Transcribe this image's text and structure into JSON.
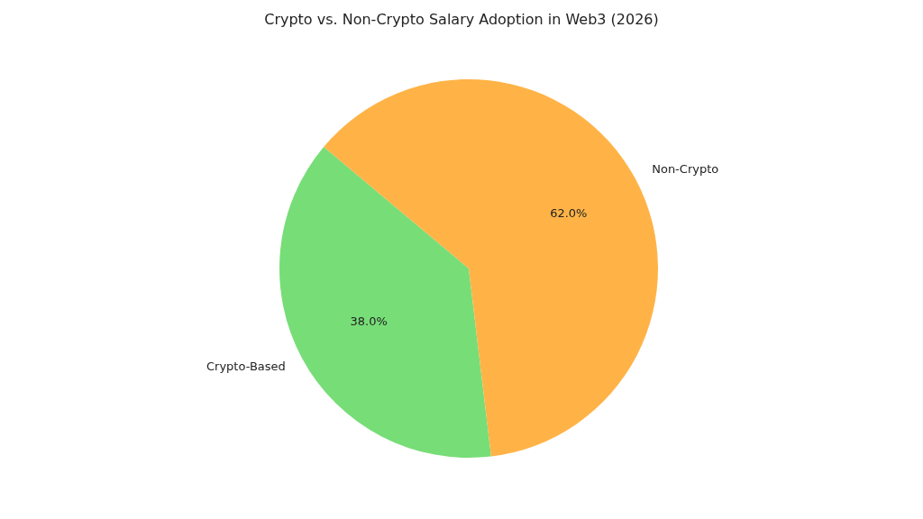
{
  "chart_data": {
    "type": "pie",
    "title": "Crypto vs. Non-Crypto Salary Adoption in Web3 (2026)",
    "categories": [
      "Crypto-Based",
      "Non-Crypto"
    ],
    "values": [
      38,
      62
    ],
    "colors": [
      "#77dd77",
      "#ffb347"
    ],
    "value_labels": [
      "38.0%",
      "62.0%"
    ],
    "legend": false
  }
}
